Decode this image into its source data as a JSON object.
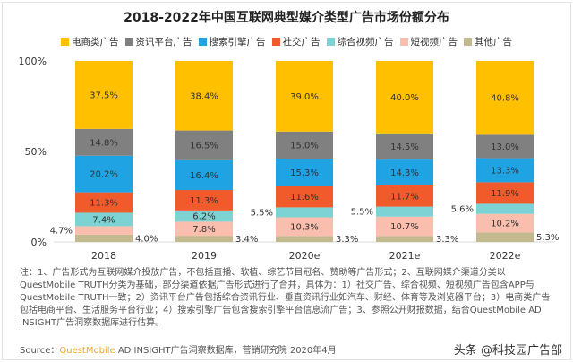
{
  "chart_data": {
    "type": "bar",
    "stacked": true,
    "title": "2018-2022年中国互联网典型媒介类型广告市场份额分布",
    "categories": [
      "2018",
      "2019",
      "2020e",
      "2021e",
      "2022e"
    ],
    "yticks": [
      "0%",
      "50%",
      "100%"
    ],
    "ylim": [
      0,
      100
    ],
    "legend_position": "top",
    "series": [
      {
        "name": "电商类广告",
        "color": "#FFC000",
        "values": [
          37.5,
          38.4,
          39.0,
          40.0,
          40.8
        ]
      },
      {
        "name": "资讯平台广告",
        "color": "#808080",
        "values": [
          14.8,
          16.5,
          15.0,
          14.5,
          13.0
        ]
      },
      {
        "name": "搜索引擎广告",
        "color": "#1FA3E3",
        "values": [
          20.2,
          16.4,
          15.3,
          14.3,
          13.3
        ]
      },
      {
        "name": "社交广告",
        "color": "#F15A2B",
        "values": [
          11.3,
          11.3,
          11.6,
          11.7,
          11.9
        ]
      },
      {
        "name": "综合视频广告",
        "color": "#7DD3D3",
        "values": [
          7.4,
          6.2,
          5.5,
          5.5,
          5.6
        ]
      },
      {
        "name": "短视频广告",
        "color": "#F9BEAE",
        "values": [
          4.7,
          7.8,
          10.3,
          10.7,
          10.2
        ]
      },
      {
        "name": "其他广告",
        "color": "#C3B98E",
        "values": [
          4.0,
          3.4,
          3.3,
          3.3,
          5.3
        ]
      }
    ]
  },
  "watermark": "QUEST MOBILE",
  "notes": "注：1、广告形式为互联网媒介投放广告，不包括直播、软植、综艺节目冠名、赞助等广告形式；2、互联网媒介渠道分类以QuestMobile TRUTH分类为基础，部分渠道依据广告形式进行了合并，具体为：1）社交广告、综合视频、短视频广告包含APP与QuestMobile TRUTH一致；2）资讯平台广告包括综合资讯行业、垂直资讯行业如汽车、财经、体育等及浏览器平台；3）电商类广告包括电商平台、生活服务平台行业；4）搜索引擎广告包含搜索引擎平台信息流广告；3、参照公开财报数据，结合QuestMobile AD INSIGHT广告洞察数据库进行估算。",
  "source": {
    "label": "Source：",
    "brand": "QuestMobile",
    "text": " AD INSIGHT广告洞察数据库，营销研究院 2020年4月"
  },
  "credit": "头条 @科技园广告部"
}
